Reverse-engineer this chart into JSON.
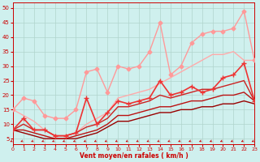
{
  "title": "",
  "xlabel": "Vent moyen/en rafales ( km/h )",
  "bg_color": "#cff0ee",
  "grid_color": "#b0d4cc",
  "xlim": [
    0,
    23
  ],
  "ylim": [
    3,
    52
  ],
  "yticks": [
    5,
    10,
    15,
    20,
    25,
    30,
    35,
    40,
    45,
    50
  ],
  "xticks": [
    0,
    1,
    2,
    3,
    4,
    5,
    6,
    7,
    8,
    9,
    10,
    11,
    12,
    13,
    14,
    15,
    16,
    17,
    18,
    19,
    20,
    21,
    22,
    23
  ],
  "lines": [
    {
      "x": [
        0,
        1,
        2,
        3,
        4,
        5,
        6,
        7,
        8,
        9,
        10,
        11,
        12,
        13,
        14,
        15,
        16,
        17,
        18,
        19,
        20,
        21,
        22,
        23
      ],
      "y": [
        15,
        19,
        18,
        13,
        12,
        12,
        15,
        28,
        29,
        21,
        30,
        29,
        30,
        35,
        45,
        27,
        30,
        38,
        41,
        42,
        42,
        43,
        49,
        32
      ],
      "color": "#ff9999",
      "lw": 1.0,
      "marker": "D",
      "ms": 2.5,
      "mfc": "#ff9999",
      "zorder": 4
    },
    {
      "x": [
        0,
        1,
        2,
        3,
        4,
        5,
        6,
        7,
        8,
        9,
        10,
        11,
        12,
        13,
        14,
        15,
        16,
        17,
        18,
        19,
        20,
        21,
        22,
        23
      ],
      "y": [
        15,
        13,
        11,
        8,
        6,
        6,
        7,
        10,
        12,
        14,
        19,
        20,
        21,
        22,
        24,
        26,
        28,
        30,
        32,
        34,
        34,
        35,
        32,
        32
      ],
      "color": "#ffaaaa",
      "lw": 1.0,
      "marker": null,
      "ms": 0,
      "zorder": 2
    },
    {
      "x": [
        0,
        1,
        2,
        3,
        4,
        5,
        6,
        7,
        8,
        9,
        10,
        11,
        12,
        13,
        14,
        15,
        16,
        17,
        18,
        19,
        20,
        21,
        22,
        23
      ],
      "y": [
        8,
        12,
        8,
        8,
        6,
        6,
        7,
        19,
        10,
        14,
        18,
        17,
        18,
        19,
        25,
        20,
        21,
        23,
        21,
        22,
        26,
        27,
        31,
        18
      ],
      "color": "#ee3333",
      "lw": 1.2,
      "marker": "+",
      "ms": 4,
      "mfc": "#ee3333",
      "zorder": 5
    },
    {
      "x": [
        0,
        1,
        2,
        3,
        4,
        5,
        6,
        7,
        8,
        9,
        10,
        11,
        12,
        13,
        14,
        15,
        16,
        17,
        18,
        19,
        20,
        21,
        22,
        23
      ],
      "y": [
        8,
        10,
        8,
        8,
        6,
        6,
        7,
        9,
        10,
        12,
        16,
        16,
        17,
        18,
        20,
        19,
        20,
        21,
        22,
        22,
        23,
        24,
        25,
        18
      ],
      "color": "#cc2222",
      "lw": 1.0,
      "marker": null,
      "ms": 0,
      "zorder": 3
    },
    {
      "x": [
        0,
        1,
        2,
        3,
        4,
        5,
        6,
        7,
        8,
        9,
        10,
        11,
        12,
        13,
        14,
        15,
        16,
        17,
        18,
        19,
        20,
        21,
        22,
        23
      ],
      "y": [
        8,
        8,
        7,
        6,
        5,
        5,
        6,
        7,
        8,
        10,
        13,
        13,
        14,
        15,
        16,
        16,
        17,
        18,
        18,
        19,
        20,
        20,
        21,
        18
      ],
      "color": "#bb1111",
      "lw": 1.0,
      "marker": null,
      "ms": 0,
      "zorder": 2
    },
    {
      "x": [
        0,
        1,
        2,
        3,
        4,
        5,
        6,
        7,
        8,
        9,
        10,
        11,
        12,
        13,
        14,
        15,
        16,
        17,
        18,
        19,
        20,
        21,
        22,
        23
      ],
      "y": [
        8,
        7,
        6,
        5,
        5,
        5,
        5,
        6,
        7,
        9,
        11,
        11,
        12,
        13,
        14,
        14,
        15,
        15,
        16,
        16,
        17,
        17,
        18,
        17
      ],
      "color": "#990000",
      "lw": 1.0,
      "marker": null,
      "ms": 0,
      "zorder": 1
    }
  ]
}
